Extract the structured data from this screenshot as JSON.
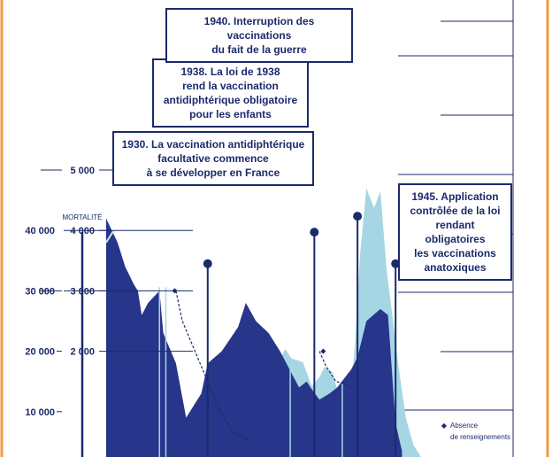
{
  "colors": {
    "cases_area": "#a6d6e4",
    "mortality_area": "#27358a",
    "navy": "#1b2a6b",
    "frame": "#f39a3e",
    "white": "#ffffff"
  },
  "chart_data": {
    "type": "area",
    "x_unit": "year",
    "xlim": [
      1922,
      1953
    ],
    "primary_axis": {
      "ticks": [
        10000,
        20000,
        30000,
        40000
      ],
      "tick_labels": [
        "10 000",
        "20 000",
        "30 000",
        "40 000"
      ]
    },
    "secondary_axis": {
      "label": "MORTALITÉ",
      "ticks": [
        2000,
        3000,
        4000,
        5000
      ],
      "tick_labels": [
        "2 000",
        "3 000",
        "4 000",
        "5 000"
      ]
    },
    "series": [
      {
        "role": "cases",
        "axis": "primary",
        "points": [
          [
            1922,
            17200
          ],
          [
            1923,
            18000
          ],
          [
            1924,
            14300
          ],
          [
            1925,
            12500
          ],
          [
            1925.9,
            10500
          ],
          [
            1926.5,
            12200
          ],
          [
            1927.1,
            15300
          ],
          [
            1927.6,
            8700
          ],
          [
            1928.5,
            7500
          ],
          [
            1929.6,
            6700
          ],
          [
            1930.8,
            7700
          ],
          [
            1932,
            8700
          ],
          [
            1933,
            13600
          ],
          [
            1934,
            17600
          ],
          [
            1935,
            19900
          ],
          [
            1935.4,
            17200
          ],
          [
            1936.1,
            20400
          ],
          [
            1936.6,
            18800
          ],
          [
            1937.5,
            18200
          ],
          [
            1938.2,
            14200
          ],
          [
            1938.8,
            15700
          ],
          [
            1939.2,
            17400
          ],
          [
            1939.8,
            16600
          ],
          [
            1940.5,
            11600
          ],
          [
            1941.2,
            11300
          ],
          [
            1941.6,
            21000
          ],
          [
            1942,
            36000
          ],
          [
            1942.5,
            47000
          ],
          [
            1943.1,
            43700
          ],
          [
            1943.6,
            46500
          ],
          [
            1944.1,
            33400
          ],
          [
            1944.6,
            25100
          ],
          [
            1945,
            18000
          ],
          [
            1945.6,
            9000
          ],
          [
            1946.2,
            4500
          ],
          [
            1946.8,
            2500
          ]
        ]
      },
      {
        "role": "mortality",
        "axis": "secondary",
        "points": [
          [
            1922,
            4200
          ],
          [
            1922.9,
            3800
          ],
          [
            1923.5,
            3400
          ],
          [
            1924.2,
            3100
          ],
          [
            1924.5,
            3000
          ],
          [
            1924.8,
            2600
          ],
          [
            1925.3,
            2800
          ],
          [
            1926.2,
            3000
          ],
          [
            1926.5,
            2300
          ],
          [
            1927.5,
            1800
          ],
          [
            1928.3,
            900
          ],
          [
            1929.5,
            1300
          ],
          [
            1930,
            1800
          ],
          [
            1931.1,
            2000
          ],
          [
            1932.4,
            2400
          ],
          [
            1933,
            2800
          ],
          [
            1933.8,
            2500
          ],
          [
            1934.8,
            2300
          ],
          [
            1935.7,
            2000
          ],
          [
            1936.7,
            1600
          ],
          [
            1937.2,
            1400
          ],
          [
            1937.8,
            1500
          ],
          [
            1938.1,
            1400
          ],
          [
            1938.8,
            1200
          ],
          [
            1939.6,
            1300
          ],
          [
            1940.2,
            1400
          ],
          [
            1941.3,
            1700
          ],
          [
            1941.8,
            1900
          ],
          [
            1942.5,
            2500
          ],
          [
            1943.6,
            2700
          ],
          [
            1944.2,
            2600
          ],
          [
            1944.8,
            800
          ],
          [
            1945.3,
            350
          ]
        ]
      },
      {
        "role": "missing-data-interpolation",
        "axis": "secondary",
        "style": "dashed",
        "points": [
          [
            1927.5,
            3000
          ],
          [
            1928,
            2500
          ],
          [
            1929,
            2000
          ],
          [
            1930,
            1500
          ],
          [
            1931,
            1000
          ],
          [
            1932,
            650
          ],
          [
            1933,
            560
          ],
          [
            1933.4,
            490
          ]
        ],
        "points_b": [
          [
            1938.8,
            2000
          ],
          [
            1939.3,
            1760
          ],
          [
            1940.1,
            1500
          ],
          [
            1940.8,
            1460
          ],
          [
            1941.2,
            1400
          ]
        ]
      },
      {
        "role": "mortality-highlight",
        "axis": "secondary",
        "style": "light-line",
        "points": [
          [
            1922,
            3800
          ],
          [
            1922.6,
            4000
          ]
        ]
      }
    ],
    "annotations": [
      {
        "year": 1930,
        "marker_level": 5750,
        "text": "1930. La vaccination antidiphtérique\nfacultative commence\nà se développer en France"
      },
      {
        "year": 1938.4,
        "marker_level": 6620,
        "text": "1938. La loi de 1938\nrend la vaccination\nantidiphtérique obligatoire\npour les enfants"
      },
      {
        "year": 1941.8,
        "marker_level": 7060,
        "text": "1940. Interruption des vaccinations\ndu fait de la guerre"
      },
      {
        "year": 1944.8,
        "marker_level": 5750,
        "text": "1945. Application\ncontrôlée de la loi\nrendant obligatoires\nles vaccinations\nanatoxiques"
      }
    ],
    "missing_markers": [
      {
        "year": 1927.4,
        "value": 3000
      },
      {
        "year": 1939.1,
        "value": 2000
      }
    ],
    "legend": {
      "symbol": "◆",
      "text": "Absence\nde renseignements",
      "position": "bottom-right"
    }
  }
}
